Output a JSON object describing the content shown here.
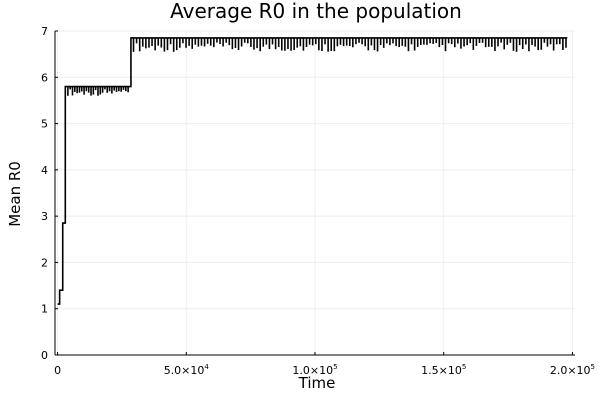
{
  "chart_data": {
    "type": "line",
    "title": "Average R0 in the population",
    "xlabel": "Time",
    "ylabel": "Mean R0",
    "xlim": [
      -1000,
      201000
    ],
    "ylim": [
      0,
      7
    ],
    "grid": true,
    "legend": "none",
    "y_ticks": [
      {
        "value": 0,
        "label": "0"
      },
      {
        "value": 1,
        "label": "1"
      },
      {
        "value": 2,
        "label": "2"
      },
      {
        "value": 3,
        "label": "3"
      },
      {
        "value": 4,
        "label": "4"
      },
      {
        "value": 5,
        "label": "5"
      },
      {
        "value": 6,
        "label": "6"
      },
      {
        "value": 7,
        "label": "7"
      }
    ],
    "x_ticks": [
      {
        "value": 0,
        "base": "0",
        "exp": ""
      },
      {
        "value": 50000,
        "base": "5.0×10",
        "exp": "4"
      },
      {
        "value": 100000,
        "base": "1.0×10",
        "exp": "5"
      },
      {
        "value": 150000,
        "base": "1.5×10",
        "exp": "5"
      },
      {
        "value": 200000,
        "base": "2.0×10",
        "exp": "5"
      }
    ],
    "series": [
      {
        "color": "#000000",
        "steps": [
          {
            "x": 0,
            "y": 1.1
          },
          {
            "x": 800,
            "y": 1.4
          },
          {
            "x": 2000,
            "y": 2.85
          },
          {
            "x": 3000,
            "y": 5.8
          },
          {
            "x": 28500,
            "y": 6.85
          },
          {
            "x": 198000,
            "y": 6.85
          }
        ],
        "dips": [
          {
            "x_start": 4000,
            "x_end": 28000,
            "spacing": 900,
            "depth": [
              5.6,
              5.75
            ]
          },
          {
            "x_start": 29500,
            "x_end": 197500,
            "spacing": 1200,
            "depth": [
              6.55,
              6.75
            ]
          }
        ]
      }
    ]
  }
}
